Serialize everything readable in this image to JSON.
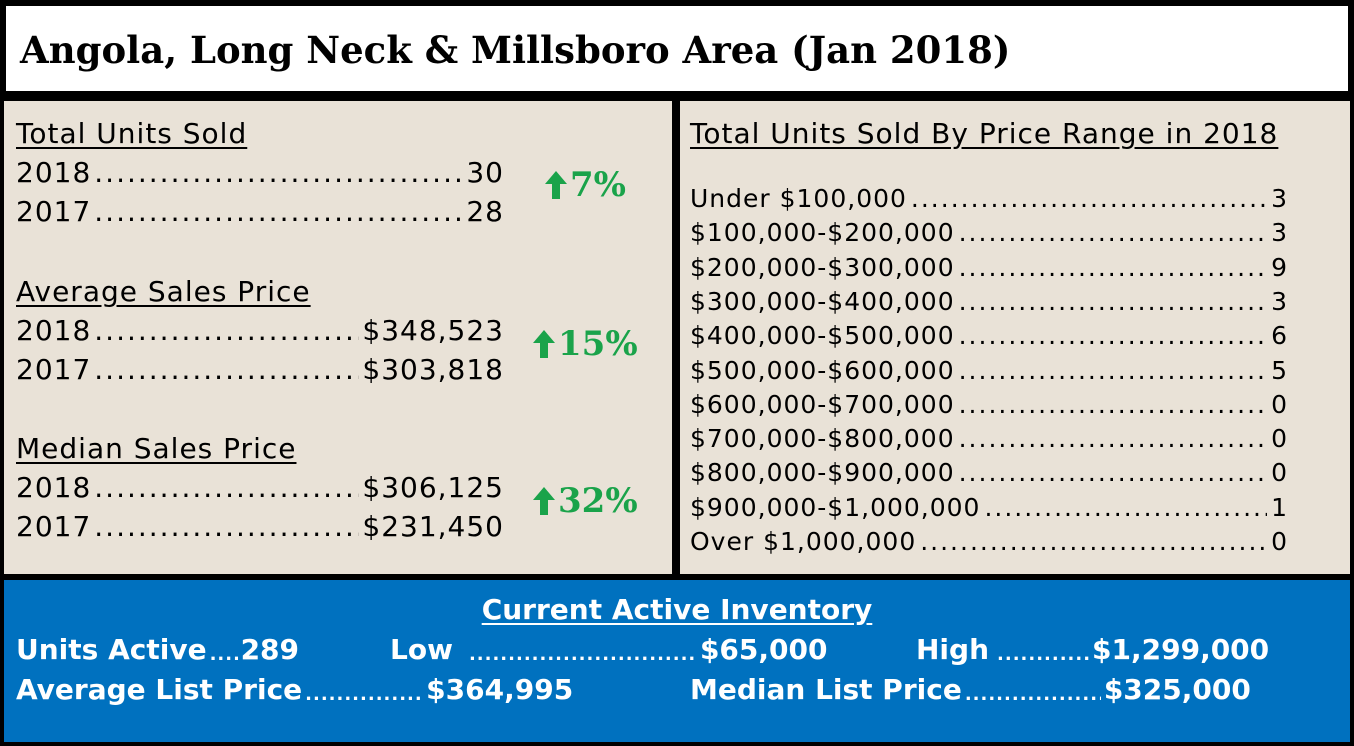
{
  "title": "Angola, Long Neck & Millsboro Area (Jan 2018)",
  "left": {
    "sections": [
      {
        "heading": "Total Units Sold",
        "rows": [
          {
            "year": "2018",
            "value": "30"
          },
          {
            "year": "2017",
            "value": "28"
          }
        ],
        "change": "7%"
      },
      {
        "heading": "Average Sales Price",
        "rows": [
          {
            "year": "2018",
            "value": "$348,523"
          },
          {
            "year": "2017",
            "value": "$303,818"
          }
        ],
        "change": "15%"
      },
      {
        "heading": "Median Sales Price",
        "rows": [
          {
            "year": "2018",
            "value": "$306,125"
          },
          {
            "year": "2017",
            "value": "$231,450"
          }
        ],
        "change": "32%"
      }
    ],
    "change_color": "#1aa34a"
  },
  "right": {
    "heading": "Total Units Sold By Price Range in 2018",
    "ranges": [
      {
        "label": "Under $100,000",
        "value": "3"
      },
      {
        "label": "$100,000-$200,000",
        "value": "3"
      },
      {
        "label": "$200,000-$300,000",
        "value": "9"
      },
      {
        "label": "$300,000-$400,000",
        "value": "3"
      },
      {
        "label": "$400,000-$500,000",
        "value": "6"
      },
      {
        "label": "$500,000-$600,000",
        "value": "5"
      },
      {
        "label": "$600,000-$700,000",
        "value": "0"
      },
      {
        "label": "$700,000-$800,000",
        "value": "0"
      },
      {
        "label": "$800,000-$900,000",
        "value": "0"
      },
      {
        "label": "$900,000-$1,000,000",
        "value": "1"
      },
      {
        "label": "Over $1,000,000",
        "value": "0"
      }
    ]
  },
  "inventory": {
    "heading": "Current Active Inventory",
    "units_active_label": "Units Active",
    "units_active_value": "289",
    "low_label": "Low",
    "low_value": "$65,000",
    "high_label": "High",
    "high_value": "$1,299,000",
    "avg_list_label": "Average List Price",
    "avg_list_value": "$364,995",
    "median_list_label": "Median List Price",
    "median_list_value": "$325,000",
    "bg_color": "#0071bf"
  }
}
